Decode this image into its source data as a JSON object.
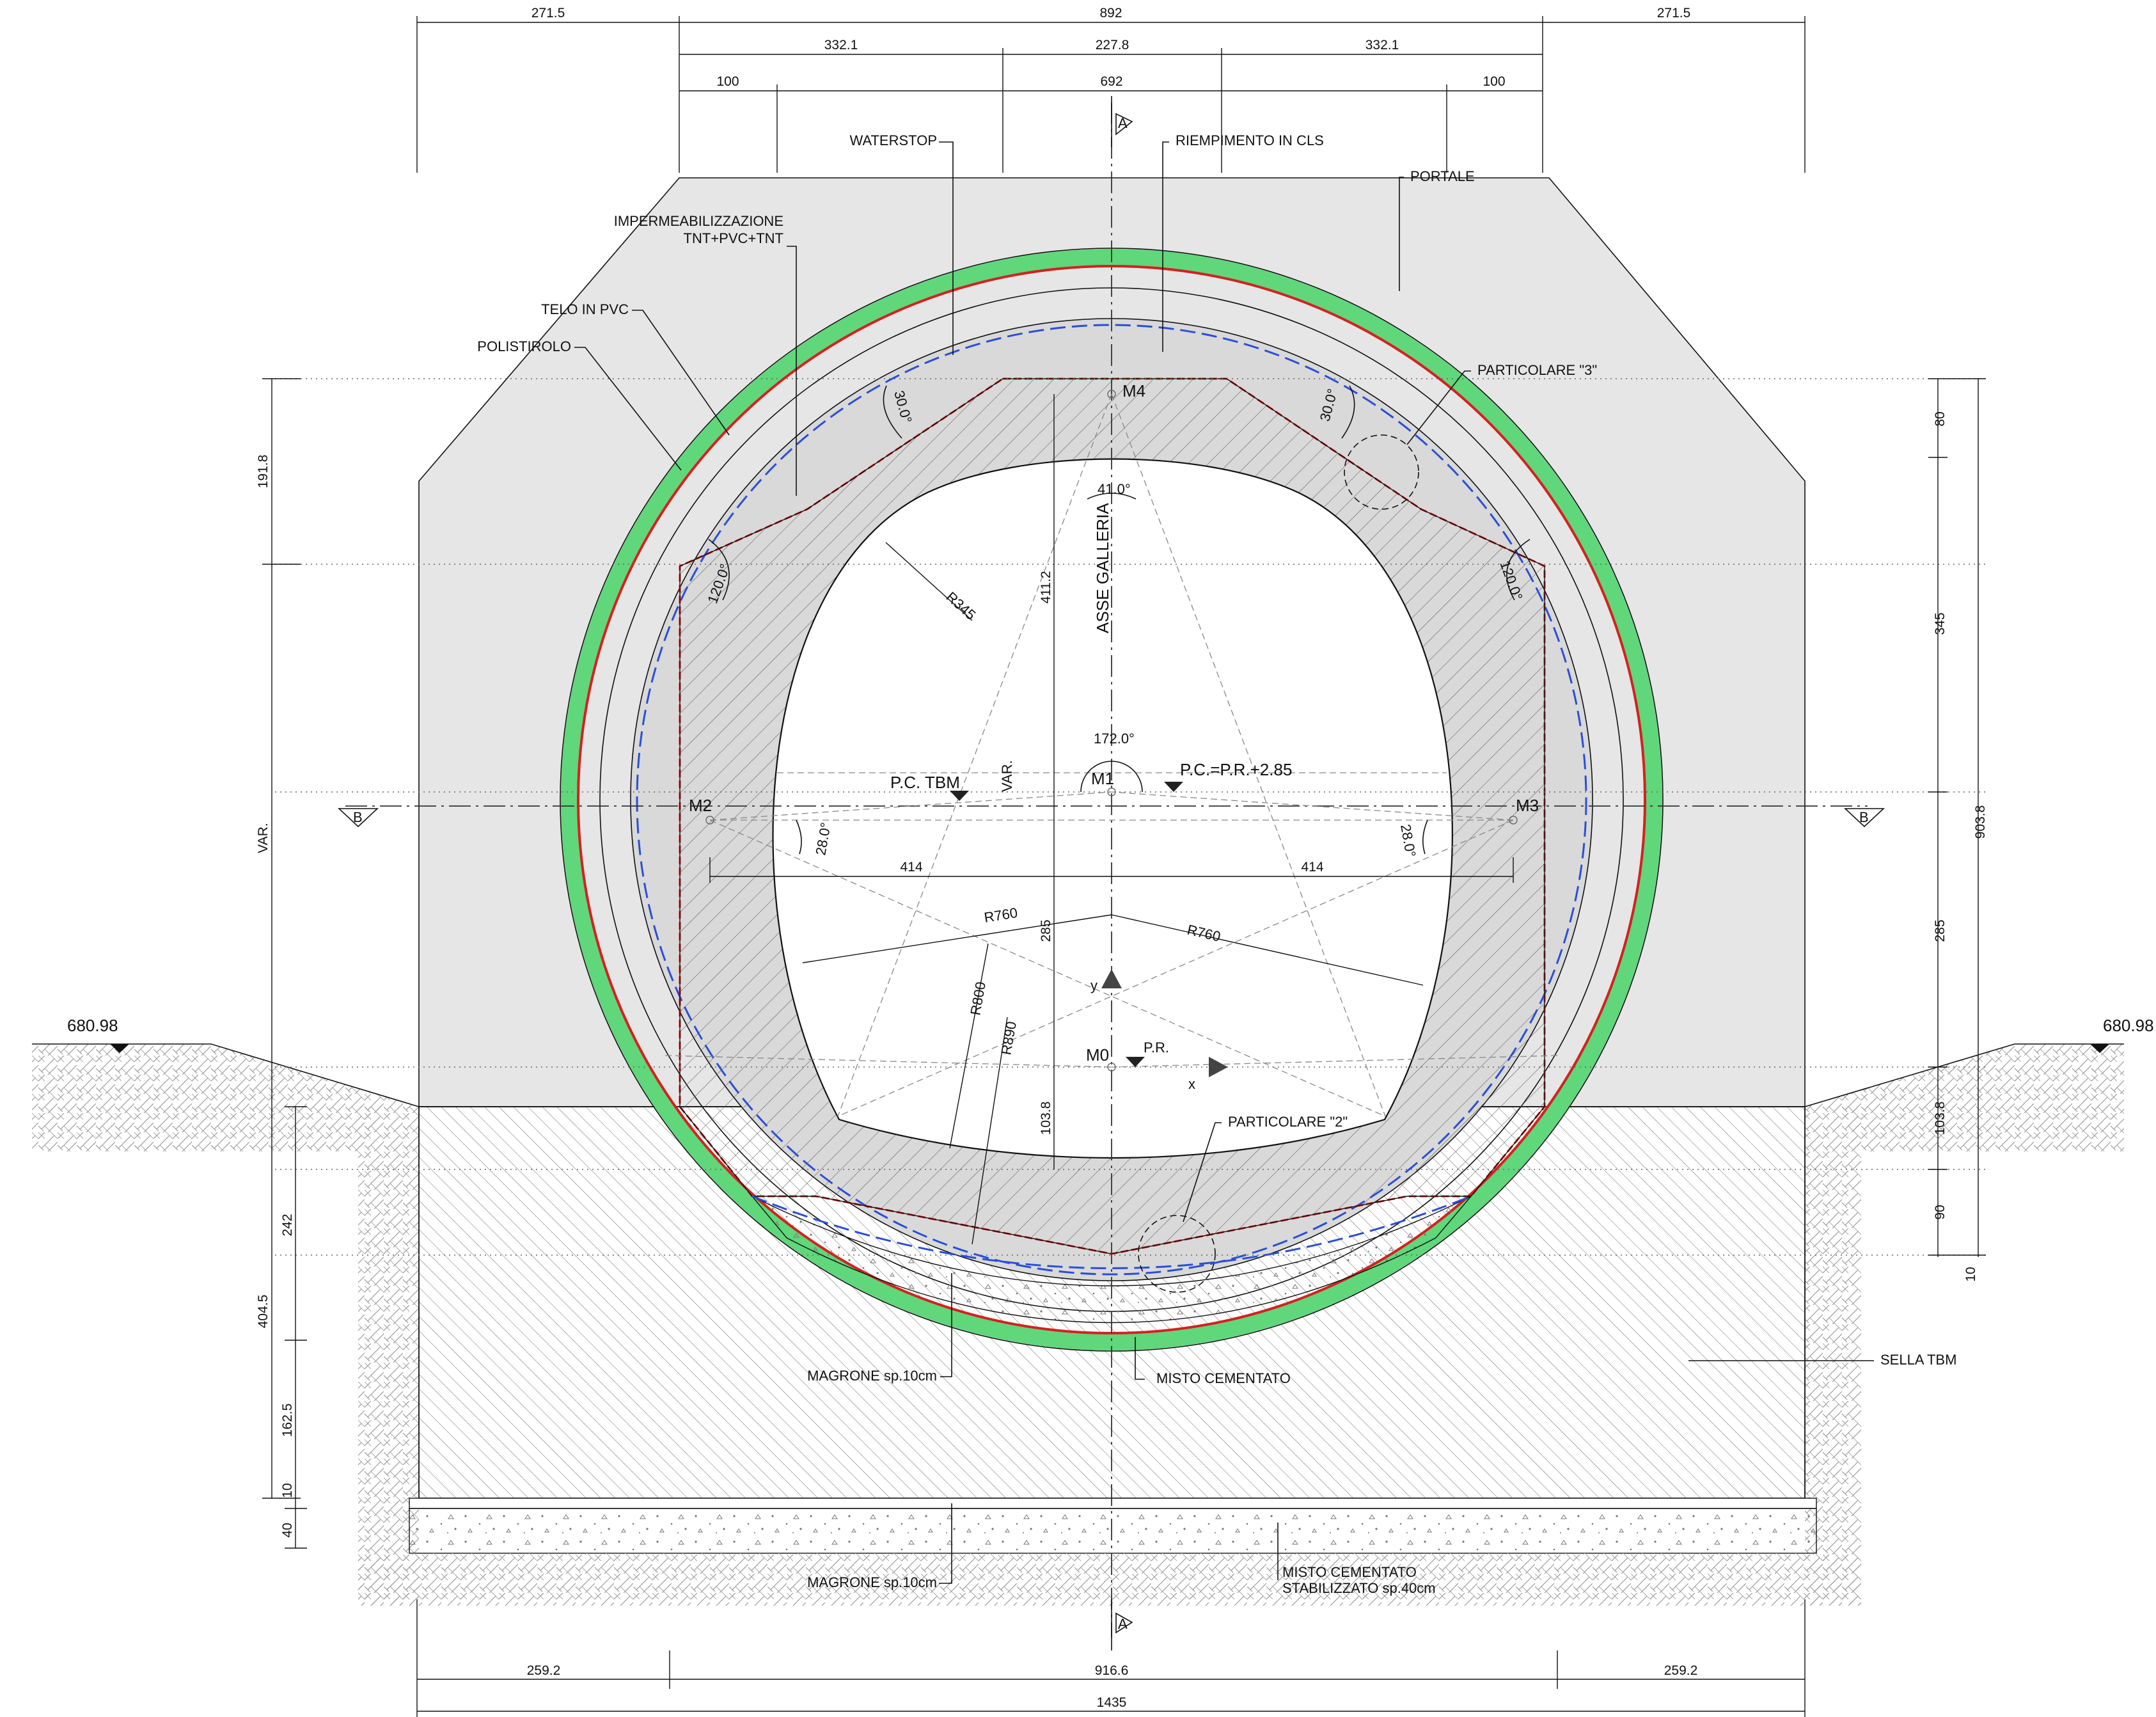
{
  "labels": {
    "waterstop": "WATERSTOP",
    "riempimento": "RIEMPIMENTO  IN  CLS",
    "portale": "PORTALE",
    "impermeabilizzazione_1": "IMPERMEABILIZZAZIONE",
    "impermeabilizzazione_2": "TNT+PVC+TNT",
    "telo_pvc": "TELO  IN  PVC",
    "polistirolo": "POLISTIROLO",
    "particolare_3": "PARTICOLARE  \"3\"",
    "particolare_2": "PARTICOLARE  \"2\"",
    "asse_galleria": "ASSE  GALLERIA",
    "pc_tbm": "P.C.  TBM",
    "pc_pr": "P.C.=P.R.+2.85",
    "pr": "P.R.",
    "var": "VAR.",
    "magrone_1": "MAGRONE  sp.10cm",
    "magrone_2": "MAGRONE  sp.10cm",
    "misto_cementato": "MISTO  CEMENTATO",
    "misto_stab_1": "MISTO  CEMENTATO",
    "misto_stab_2": "STABILIZZATO  sp.40cm",
    "sella_tbm": "SELLA  TBM"
  },
  "points": {
    "m0": "M0",
    "m1": "M1",
    "m2": "M2",
    "m3": "M3",
    "m4": "M4",
    "x": "x",
    "y": "y"
  },
  "sections": {
    "a": "A",
    "b": "B"
  },
  "levels": {
    "left": "680.98",
    "right": "680.98"
  },
  "angles": {
    "a41": "41.0°",
    "a172": "172.0°",
    "a30_left": "30.0°",
    "a30_right": "30.0°",
    "a120_left": "120.0°",
    "a120_right": "120.0°",
    "a28_left": "28.0°",
    "a28_right": "28.0°"
  },
  "radii": {
    "r345": "R345",
    "r760_left": "R760",
    "r760_right": "R760",
    "r800": "R800",
    "r890": "R890"
  },
  "dims": {
    "top_row1": [
      "271.5",
      "892",
      "271.5"
    ],
    "top_row2": [
      "332.1",
      "227.8",
      "332.1"
    ],
    "top_row3": [
      "100",
      "692",
      "100"
    ],
    "left_col": [
      "191.8",
      "VAR.",
      "242",
      "162.5",
      "404.5",
      "10",
      "40"
    ],
    "right_col": [
      "80",
      "345",
      "285",
      "103.8",
      "90",
      "10",
      "903.8"
    ],
    "inner_vertical": [
      "411.2",
      "285",
      "103.8"
    ],
    "m_offsets": [
      "414",
      "414"
    ],
    "bottom_row1": [
      "259.2",
      "916.6",
      "259.2"
    ],
    "bottom_row2": [
      "1435"
    ]
  },
  "colors": {
    "polistirolo_green": "#5fd77a",
    "pvc_red": "#d62020",
    "waterproof_blue": "#2a4fd6",
    "fill_grey": "#e6e6e6",
    "lining_grey": "#d9d9d9"
  }
}
